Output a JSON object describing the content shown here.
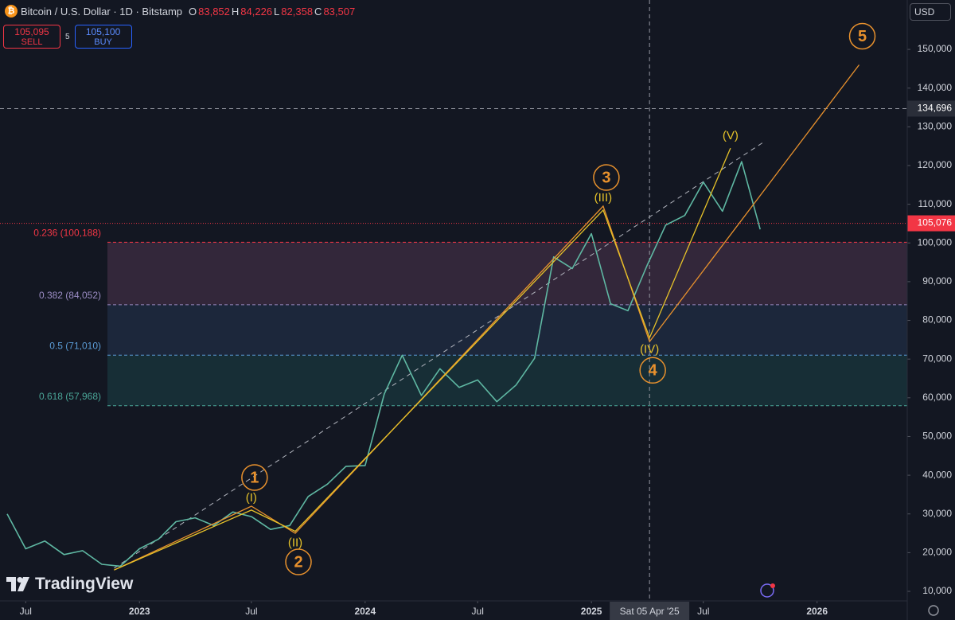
{
  "header": {
    "title": "Bitcoin / U.S. Dollar · 1D · Bitstamp",
    "ohlc": [
      {
        "key": "O",
        "value": "83,852"
      },
      {
        "key": "H",
        "value": "84,226"
      },
      {
        "key": "L",
        "value": "82,358"
      },
      {
        "key": "C",
        "value": "83,507"
      }
    ],
    "sell": {
      "price": "105,095",
      "label": "SELL"
    },
    "spread": "5",
    "buy": {
      "price": "105,100",
      "label": "BUY"
    },
    "currency": "USD"
  },
  "logo": "TradingView",
  "chart_data": {
    "type": "line",
    "x": [
      "2022-06",
      "2022-07",
      "2022-08",
      "2022-09",
      "2022-10",
      "2022-11",
      "2022-12",
      "2023-01",
      "2023-02",
      "2023-03",
      "2023-04",
      "2023-05",
      "2023-06",
      "2023-07",
      "2023-08",
      "2023-09",
      "2023-10",
      "2023-11",
      "2023-12",
      "2024-01",
      "2024-02",
      "2024-03",
      "2024-04",
      "2024-05",
      "2024-06",
      "2024-07",
      "2024-08",
      "2024-09",
      "2024-10",
      "2024-11",
      "2024-12",
      "2025-01",
      "2025-02",
      "2025-03",
      "2025-04",
      "2025-05",
      "2025-06",
      "2025-07",
      "2025-08",
      "2025-09",
      "2025-10"
    ],
    "series": [
      {
        "color": "#5fb8a3",
        "values": [
          30000,
          21000,
          23000,
          19500,
          20500,
          17000,
          16500,
          21000,
          23500,
          28000,
          29000,
          27000,
          30500,
          29300,
          26000,
          27000,
          34500,
          37700,
          42300,
          42500,
          61000,
          71000,
          60600,
          67500,
          62700,
          64600,
          59000,
          63300,
          70200,
          96400,
          93400,
          102400,
          84300,
          82500,
          94200,
          104600,
          107100,
          115700,
          108200,
          121000,
          103500
        ]
      }
    ],
    "xlim": [
      "2022-06",
      "2026-06"
    ],
    "xticks": [
      {
        "value": "2022-07",
        "label": "Jul"
      },
      {
        "value": "2023-01",
        "label": "2023"
      },
      {
        "value": "2023-07",
        "label": "Jul"
      },
      {
        "value": "2024-01",
        "label": "2024"
      },
      {
        "value": "2024-07",
        "label": "Jul"
      },
      {
        "value": "2025-01",
        "label": "2025"
      },
      {
        "value": "2025-07",
        "label": "Jul"
      },
      {
        "value": "2026-01",
        "label": "2026"
      }
    ],
    "ylim": [
      7533,
      162760
    ],
    "yticks": [
      {
        "value": 10000,
        "label": "10,000"
      },
      {
        "value": 20000,
        "label": "20,000"
      },
      {
        "value": 30000,
        "label": "30,000"
      },
      {
        "value": 40000,
        "label": "40,000"
      },
      {
        "value": 50000,
        "label": "50,000"
      },
      {
        "value": 60000,
        "label": "60,000"
      },
      {
        "value": 70000,
        "label": "70,000"
      },
      {
        "value": 80000,
        "label": "80,000"
      },
      {
        "value": 90000,
        "label": "90,000"
      },
      {
        "value": 100000,
        "label": "100,000"
      },
      {
        "value": 110000,
        "label": "110,000"
      },
      {
        "value": 120000,
        "label": "120,000"
      },
      {
        "value": 130000,
        "label": "130,000"
      },
      {
        "value": 140000,
        "label": "140,000"
      },
      {
        "value": 150000,
        "label": "150,000"
      }
    ],
    "fib_levels": [
      {
        "label": "0.236 (100,188)",
        "value": 100188,
        "color": "#f23645",
        "fill": "#3a2a3e"
      },
      {
        "label": "0.382 (84,052)",
        "value": 84052,
        "color": "#9b8cc4",
        "fill": "#1f2a40"
      },
      {
        "label": "0.5 (71,010)",
        "value": 71010,
        "color": "#5b9bd5",
        "fill": "#19333a"
      },
      {
        "label": "0.618 (57,968)",
        "value": 57968,
        "color": "#4aa597"
      }
    ],
    "price_lines": [
      {
        "value": 134696,
        "label": "134,696",
        "color": "#9598a1",
        "box": "#2a2e39"
      },
      {
        "value": 105076,
        "label": "105,076",
        "color": "#f23645",
        "box": "#f23645"
      }
    ],
    "crosshair": {
      "x": "2025-04-05",
      "label": "Sat 05 Apr '25"
    },
    "trendline": {
      "x": [
        "2022-11-21",
        "2025-10-06"
      ],
      "values": [
        16000,
        126000
      ],
      "color": "#b2b5be"
    },
    "waves": [
      {
        "color": "#e8912d",
        "style": "circle",
        "x": [
          "2022-11-21",
          "2023-07-01",
          "2023-09-10",
          "2025-01-20",
          "2025-04-05",
          "2026-03-10"
        ],
        "values": [
          15500,
          32000,
          25000,
          109500,
          74500,
          146000
        ],
        "labels": [
          null,
          "1",
          "2",
          "3",
          "4",
          "5"
        ]
      },
      {
        "color": "#e6c229",
        "style": "plain",
        "x": [
          "2022-11-21",
          "2023-07-01",
          "2023-09-10",
          "2025-01-20",
          "2025-04-05",
          "2025-08-14"
        ],
        "values": [
          15500,
          31000,
          25500,
          108500,
          75500,
          124500
        ],
        "labels": [
          null,
          "(I)",
          "(II)",
          "(III)",
          "(IV)",
          "(V)"
        ]
      }
    ]
  }
}
